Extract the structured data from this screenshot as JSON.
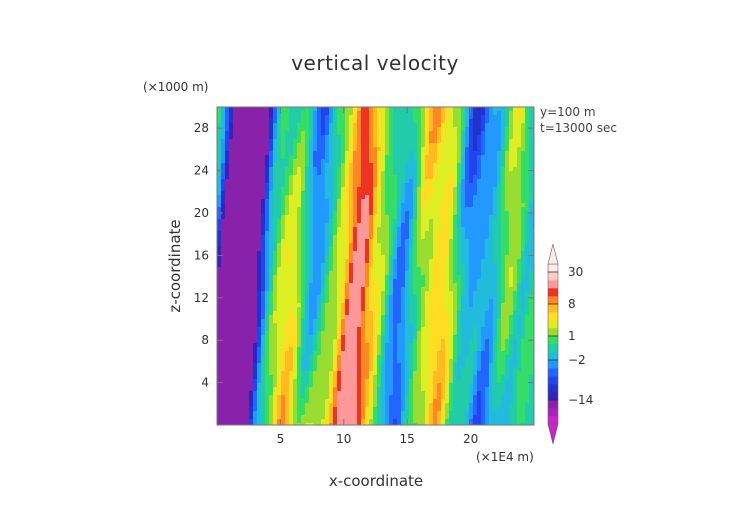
{
  "chart_data": {
    "type": "heatmap",
    "title": "vertical velocity",
    "xlabel": "x-coordinate",
    "ylabel": "z-coordinate",
    "x_unit": "(×1E4 m)",
    "y_unit": "(×1000 m)",
    "annotations": [
      "y=100 m",
      "t=13000 sec"
    ],
    "xlim": [
      0,
      25
    ],
    "ylim": [
      0,
      30
    ],
    "x_ticks": [
      5,
      10,
      15,
      20
    ],
    "y_ticks": [
      4,
      8,
      12,
      16,
      20,
      24,
      28
    ],
    "colorbar": {
      "labels": [
        "30",
        "8",
        "1",
        "−2",
        "−14"
      ],
      "label_values": [
        30,
        8,
        1,
        -2,
        -14
      ],
      "levels": [
        -30,
        -20,
        -14,
        -10,
        -8,
        -6,
        -4,
        -2,
        -1,
        0,
        1,
        2,
        4,
        6,
        8,
        10,
        14,
        20,
        30
      ],
      "colors": [
        "#cc22cc",
        "#aa22bb",
        "#8822aa",
        "#3322bb",
        "#2233cc",
        "#2244ee",
        "#2266ff",
        "#2299ff",
        "#22bbdd",
        "#22ccaa",
        "#33dd66",
        "#99dd33",
        "#ddee22",
        "#ffdd22",
        "#ffbb22",
        "#ff8822",
        "#ee3322",
        "#ff9999",
        "#ffcccc",
        "#ffe8e8"
      ]
    }
  }
}
